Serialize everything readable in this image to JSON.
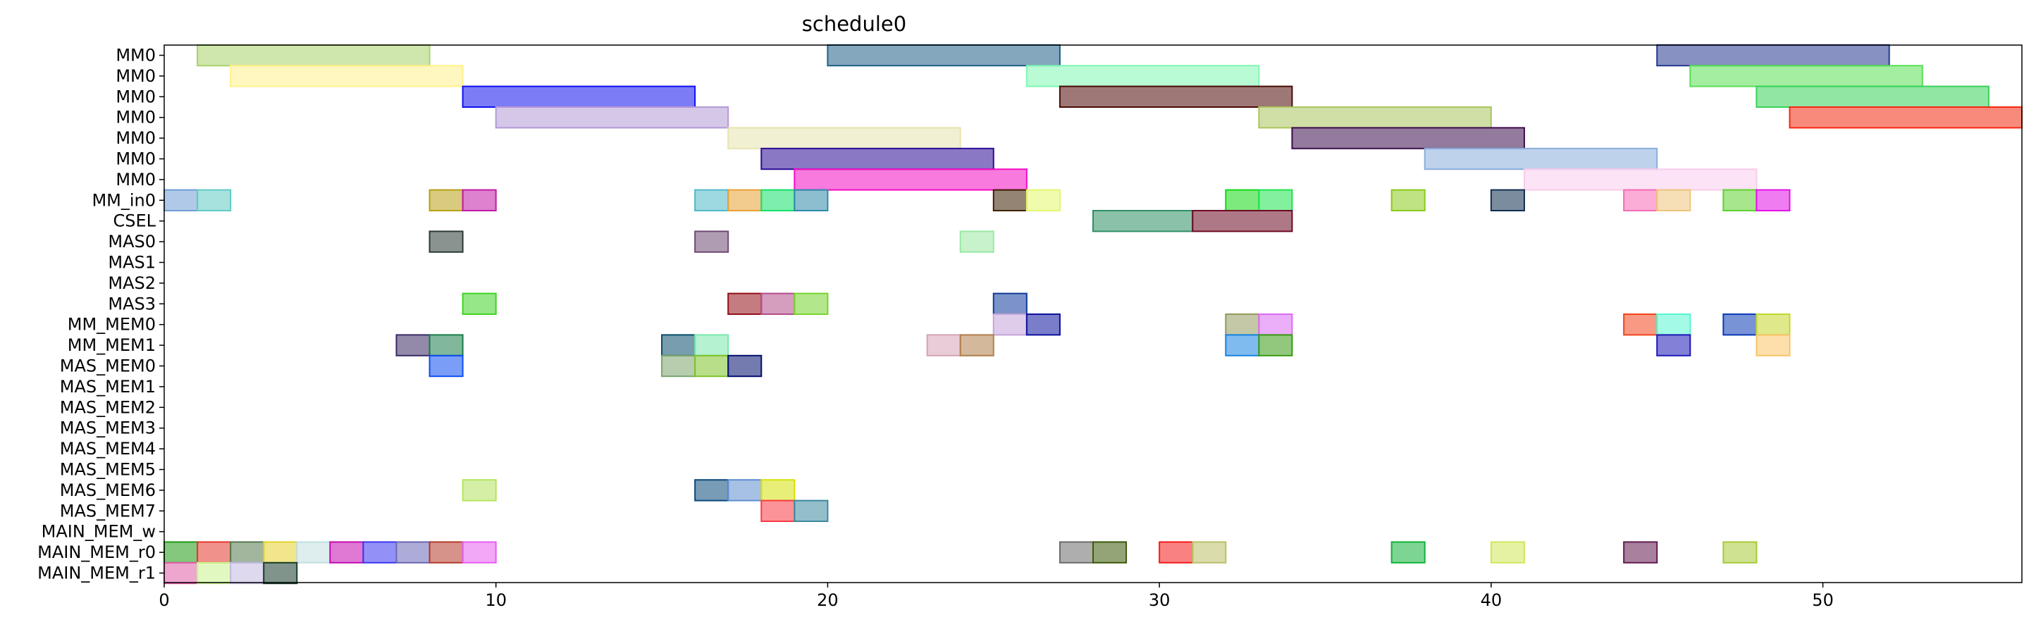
{
  "chart_data": {
    "type": "gantt",
    "title": "schedule0",
    "xlabel": "",
    "ylabel": "",
    "xlim": [
      0,
      56
    ],
    "xticks": [
      0,
      10,
      20,
      30,
      40,
      50
    ],
    "grid": false,
    "rows": [
      "MM0",
      "MM0",
      "MM0",
      "MM0",
      "MM0",
      "MM0",
      "MM0",
      "MM_in0",
      "CSEL",
      "MAS0",
      "MAS1",
      "MAS2",
      "MAS3",
      "MM_MEM0",
      "MM_MEM1",
      "MAS_MEM0",
      "MAS_MEM1",
      "MAS_MEM2",
      "MAS_MEM3",
      "MAS_MEM4",
      "MAS_MEM5",
      "MAS_MEM6",
      "MAS_MEM7",
      "MAIN_MEM_w",
      "MAIN_MEM_r0",
      "MAIN_MEM_r1"
    ],
    "tasks": [
      {
        "row": 0,
        "start": 1,
        "end": 8,
        "color": "#a8d26a"
      },
      {
        "row": 0,
        "start": 20,
        "end": 27,
        "color": "#1f5f86"
      },
      {
        "row": 0,
        "start": 45,
        "end": 52,
        "color": "#24388f"
      },
      {
        "row": 1,
        "start": 2,
        "end": 9,
        "color": "#fff18a"
      },
      {
        "row": 1,
        "start": 26,
        "end": 33,
        "color": "#7ff7b3"
      },
      {
        "row": 1,
        "start": 46,
        "end": 53,
        "color": "#58e054"
      },
      {
        "row": 2,
        "start": 9,
        "end": 16,
        "color": "#1010f0"
      },
      {
        "row": 2,
        "start": 27,
        "end": 34,
        "color": "#4c0a06"
      },
      {
        "row": 2,
        "start": 48,
        "end": 55,
        "color": "#38d25a"
      },
      {
        "row": 3,
        "start": 10,
        "end": 17,
        "color": "#b399d6"
      },
      {
        "row": 3,
        "start": 33,
        "end": 40,
        "color": "#aac55c"
      },
      {
        "row": 3,
        "start": 49,
        "end": 56,
        "color": "#f2290f"
      },
      {
        "row": 4,
        "start": 17,
        "end": 24,
        "color": "#e6e4ae"
      },
      {
        "row": 4,
        "start": 34,
        "end": 41,
        "color": "#3c0c4c"
      },
      {
        "row": 5,
        "start": 18,
        "end": 25,
        "color": "#2b0a96"
      },
      {
        "row": 5,
        "start": 38,
        "end": 45,
        "color": "#8aaddd"
      },
      {
        "row": 6,
        "start": 19,
        "end": 26,
        "color": "#f30cc3"
      },
      {
        "row": 6,
        "start": 41,
        "end": 48,
        "color": "#f9ccec"
      },
      {
        "row": 7,
        "start": 0,
        "end": 1,
        "color": "#6f9cd6"
      },
      {
        "row": 7,
        "start": 1,
        "end": 2,
        "color": "#5ecbc4"
      },
      {
        "row": 7,
        "start": 8,
        "end": 9,
        "color": "#b8a012"
      },
      {
        "row": 7,
        "start": 9,
        "end": 10,
        "color": "#c21aa5"
      },
      {
        "row": 7,
        "start": 16,
        "end": 17,
        "color": "#4fb8c8"
      },
      {
        "row": 7,
        "start": 17,
        "end": 18,
        "color": "#e8a033"
      },
      {
        "row": 7,
        "start": 18,
        "end": 19,
        "color": "#13e066"
      },
      {
        "row": 7,
        "start": 19,
        "end": 20,
        "color": "#2e89aa"
      },
      {
        "row": 7,
        "start": 25,
        "end": 26,
        "color": "#3d1f00"
      },
      {
        "row": 7,
        "start": 26,
        "end": 27,
        "color": "#e4f76b"
      },
      {
        "row": 7,
        "start": 32,
        "end": 33,
        "color": "#13d813"
      },
      {
        "row": 7,
        "start": 33,
        "end": 34,
        "color": "#1ee34c"
      },
      {
        "row": 7,
        "start": 37,
        "end": 38,
        "color": "#8acb1c"
      },
      {
        "row": 7,
        "start": 40,
        "end": 41,
        "color": "#0e2e50"
      },
      {
        "row": 7,
        "start": 44,
        "end": 45,
        "color": "#f76ab6"
      },
      {
        "row": 7,
        "start": 45,
        "end": 46,
        "color": "#efc57a"
      },
      {
        "row": 7,
        "start": 47,
        "end": 48,
        "color": "#5ed12f"
      },
      {
        "row": 7,
        "start": 48,
        "end": 49,
        "color": "#e410e8"
      },
      {
        "row": 8,
        "start": 28,
        "end": 31,
        "color": "#2e8e63"
      },
      {
        "row": 8,
        "start": 31,
        "end": 34,
        "color": "#6e0a23"
      },
      {
        "row": 9,
        "start": 8,
        "end": 9,
        "color": "#2b3b37"
      },
      {
        "row": 9,
        "start": 16,
        "end": 17,
        "color": "#6f4a72"
      },
      {
        "row": 9,
        "start": 24,
        "end": 25,
        "color": "#9ae8a3"
      },
      {
        "row": 12,
        "start": 9,
        "end": 10,
        "color": "#40d324"
      },
      {
        "row": 12,
        "start": 17,
        "end": 18,
        "color": "#931018"
      },
      {
        "row": 12,
        "start": 18,
        "end": 19,
        "color": "#b34c88"
      },
      {
        "row": 12,
        "start": 19,
        "end": 20,
        "color": "#74d42c"
      },
      {
        "row": 12,
        "start": 25,
        "end": 26,
        "color": "#0e3a9a"
      },
      {
        "row": 13,
        "start": 25,
        "end": 26,
        "color": "#c5a3da"
      },
      {
        "row": 13,
        "start": 26,
        "end": 27,
        "color": "#0c129c"
      },
      {
        "row": 13,
        "start": 32,
        "end": 33,
        "color": "#939a5d"
      },
      {
        "row": 13,
        "start": 33,
        "end": 34,
        "color": "#da6cf4"
      },
      {
        "row": 13,
        "start": 44,
        "end": 45,
        "color": "#f2451e"
      },
      {
        "row": 13,
        "start": 45,
        "end": 46,
        "color": "#58f7d1"
      },
      {
        "row": 13,
        "start": 47,
        "end": 48,
        "color": "#0a3ab5"
      },
      {
        "row": 13,
        "start": 48,
        "end": 49,
        "color": "#c4d72c"
      },
      {
        "row": 14,
        "start": 7,
        "end": 8,
        "color": "#3a2a64"
      },
      {
        "row": 14,
        "start": 8,
        "end": 9,
        "color": "#1a7d48"
      },
      {
        "row": 14,
        "start": 15,
        "end": 16,
        "color": "#074c6c"
      },
      {
        "row": 14,
        "start": 16,
        "end": 17,
        "color": "#78e8ad"
      },
      {
        "row": 14,
        "start": 23,
        "end": 24,
        "color": "#d6a2b6"
      },
      {
        "row": 14,
        "start": 24,
        "end": 25,
        "color": "#b07e4b"
      },
      {
        "row": 14,
        "start": 32,
        "end": 33,
        "color": "#1784e2"
      },
      {
        "row": 14,
        "start": 33,
        "end": 34,
        "color": "#379a12"
      },
      {
        "row": 14,
        "start": 45,
        "end": 46,
        "color": "#1e18b8"
      },
      {
        "row": 14,
        "start": 48,
        "end": 49,
        "color": "#f9c466"
      },
      {
        "row": 15,
        "start": 8,
        "end": 9,
        "color": "#0d4ef2"
      },
      {
        "row": 15,
        "start": 15,
        "end": 16,
        "color": "#7ba46b"
      },
      {
        "row": 15,
        "start": 16,
        "end": 17,
        "color": "#7ec22a"
      },
      {
        "row": 15,
        "start": 17,
        "end": 18,
        "color": "#020e6c"
      },
      {
        "row": 21,
        "start": 9,
        "end": 10,
        "color": "#b3e45c"
      },
      {
        "row": 21,
        "start": 16,
        "end": 17,
        "color": "#0a4a7a"
      },
      {
        "row": 21,
        "start": 17,
        "end": 18,
        "color": "#5f8ed0"
      },
      {
        "row": 21,
        "start": 18,
        "end": 19,
        "color": "#d6e20a"
      },
      {
        "row": 22,
        "start": 18,
        "end": 19,
        "color": "#fa3a45"
      },
      {
        "row": 22,
        "start": 19,
        "end": 20,
        "color": "#3a8aa0"
      },
      {
        "row": 24,
        "start": 0,
        "end": 1,
        "color": "#1e9a12"
      },
      {
        "row": 24,
        "start": 1,
        "end": 2,
        "color": "#e5372d"
      },
      {
        "row": 24,
        "start": 2,
        "end": 3,
        "color": "#567a4f"
      },
      {
        "row": 24,
        "start": 3,
        "end": 4,
        "color": "#e5d22e"
      },
      {
        "row": 24,
        "start": 4,
        "end": 5,
        "color": "#c2dfe0"
      },
      {
        "row": 24,
        "start": 5,
        "end": 6,
        "color": "#c40bb0"
      },
      {
        "row": 24,
        "start": 6,
        "end": 7,
        "color": "#3a37f0"
      },
      {
        "row": 24,
        "start": 7,
        "end": 8,
        "color": "#6a68b8"
      },
      {
        "row": 24,
        "start": 8,
        "end": 9,
        "color": "#b53b2a"
      },
      {
        "row": 24,
        "start": 9,
        "end": 10,
        "color": "#e85ef0"
      },
      {
        "row": 24,
        "start": 27,
        "end": 28,
        "color": "#6b6b6b"
      },
      {
        "row": 24,
        "start": 28,
        "end": 29,
        "color": "#3c5a08"
      },
      {
        "row": 24,
        "start": 30,
        "end": 31,
        "color": "#f51a1a"
      },
      {
        "row": 24,
        "start": 31,
        "end": 32,
        "color": "#bcc068"
      },
      {
        "row": 24,
        "start": 37,
        "end": 38,
        "color": "#12b23a"
      },
      {
        "row": 24,
        "start": 40,
        "end": 41,
        "color": "#cfe75a"
      },
      {
        "row": 24,
        "start": 44,
        "end": 45,
        "color": "#621a50"
      },
      {
        "row": 24,
        "start": 47,
        "end": 48,
        "color": "#a6ca36"
      },
      {
        "row": 25,
        "start": 0,
        "end": 1,
        "color": "#e05ca7"
      },
      {
        "row": 25,
        "start": 1,
        "end": 2,
        "color": "#c9f48c"
      },
      {
        "row": 25,
        "start": 2,
        "end": 3,
        "color": "#c2b9e1"
      },
      {
        "row": 25,
        "start": 3,
        "end": 4,
        "color": "#173d2c"
      }
    ]
  }
}
